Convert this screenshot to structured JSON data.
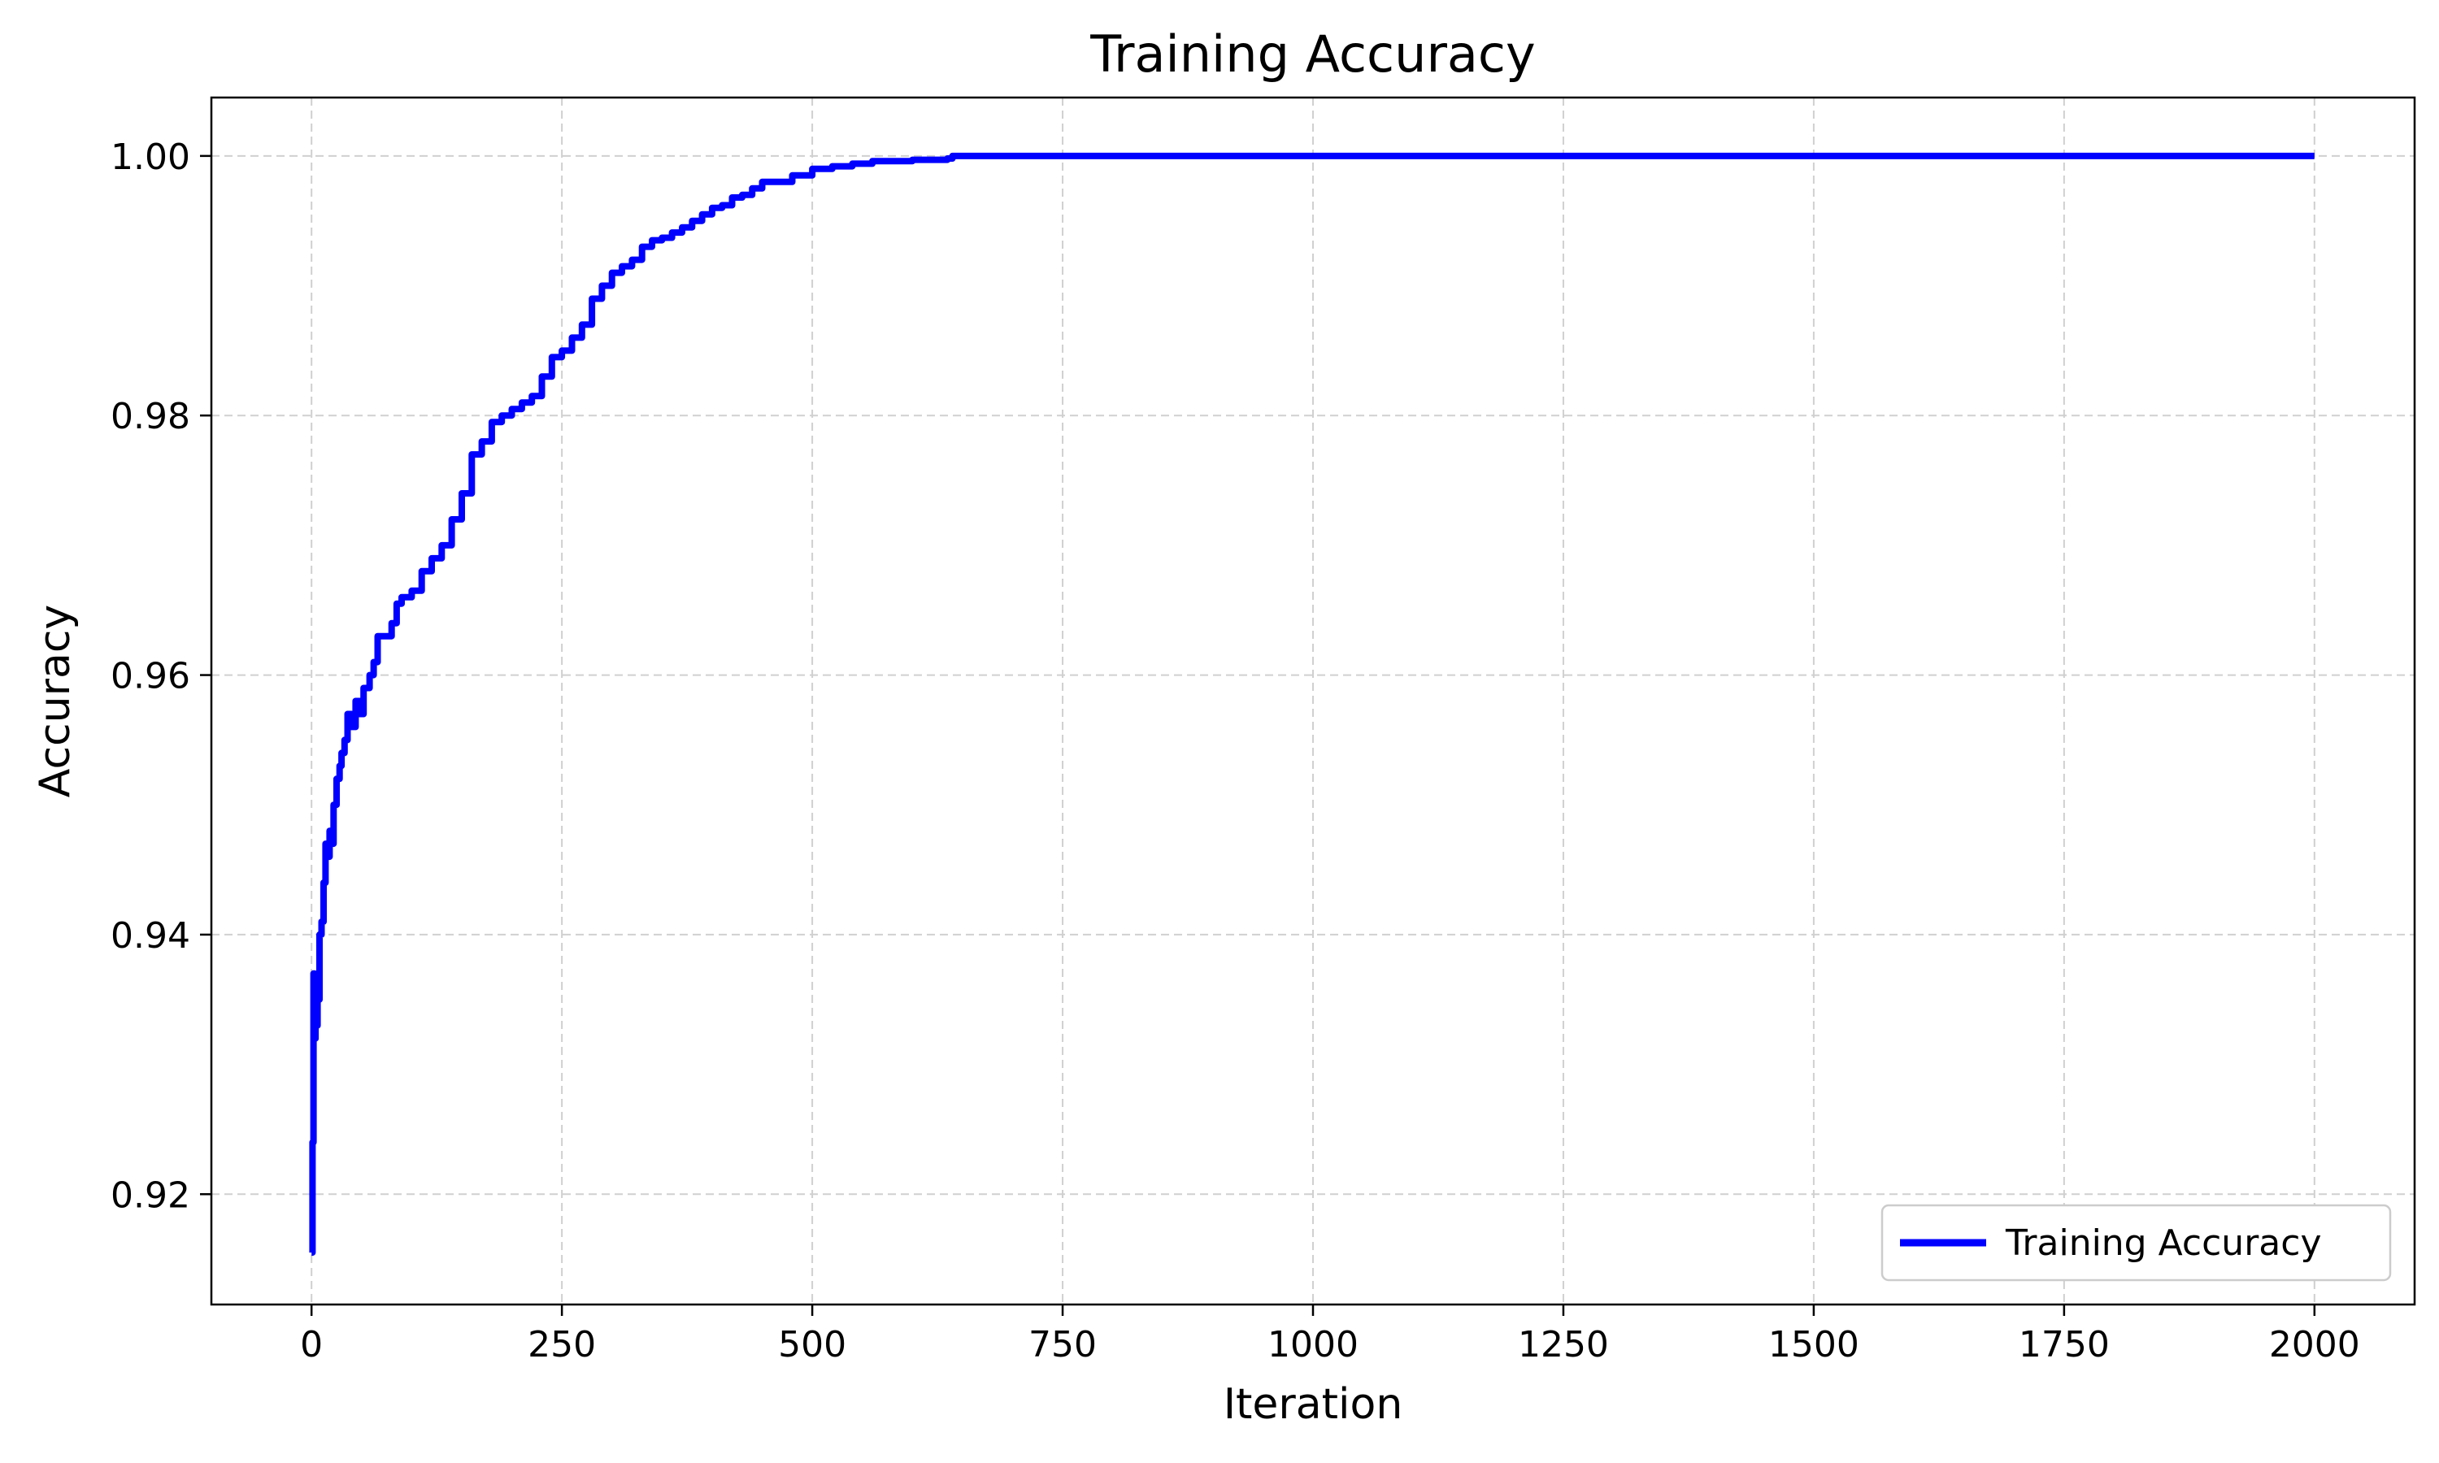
{
  "chart_data": {
    "type": "line",
    "title": "Training Accuracy",
    "xlabel": "Iteration",
    "ylabel": "Accuracy",
    "xlim": [
      -100,
      2100
    ],
    "ylim": [
      0.9115,
      1.0045
    ],
    "xticks": [
      0,
      250,
      500,
      750,
      1000,
      1250,
      1500,
      1750,
      2000
    ],
    "xtick_labels": [
      "0",
      "250",
      "500",
      "750",
      "1000",
      "1250",
      "1500",
      "1750",
      "2000"
    ],
    "yticks": [
      0.92,
      0.94,
      0.96,
      0.98,
      1.0
    ],
    "ytick_labels": [
      "0.92",
      "0.94",
      "0.96",
      "0.98",
      "1.00"
    ],
    "grid": true,
    "legend": {
      "position": "lower-right",
      "entries": [
        "Training Accuracy"
      ]
    },
    "series": [
      {
        "name": "Training Accuracy",
        "color": "#0000ff",
        "x": [
          0,
          1,
          2,
          3,
          4,
          5,
          6,
          7,
          8,
          10,
          12,
          14,
          16,
          18,
          20,
          22,
          25,
          28,
          30,
          33,
          36,
          40,
          44,
          48,
          52,
          55,
          58,
          62,
          66,
          70,
          75,
          80,
          85,
          90,
          95,
          100,
          110,
          120,
          130,
          140,
          150,
          160,
          170,
          180,
          190,
          200,
          210,
          220,
          230,
          240,
          250,
          260,
          270,
          280,
          290,
          300,
          310,
          320,
          330,
          340,
          350,
          360,
          370,
          380,
          390,
          400,
          410,
          420,
          430,
          440,
          450,
          460,
          480,
          500,
          520,
          540,
          560,
          580,
          600,
          620,
          635,
          640,
          700,
          800,
          1000,
          1250,
          1500,
          1750,
          2000
        ],
        "y": [
          0.9155,
          0.924,
          0.937,
          0.932,
          0.936,
          0.933,
          0.936,
          0.935,
          0.94,
          0.941,
          0.944,
          0.947,
          0.946,
          0.948,
          0.947,
          0.95,
          0.952,
          0.953,
          0.954,
          0.955,
          0.957,
          0.956,
          0.958,
          0.957,
          0.959,
          0.959,
          0.96,
          0.961,
          0.963,
          0.963,
          0.963,
          0.964,
          0.9655,
          0.966,
          0.966,
          0.9665,
          0.968,
          0.969,
          0.97,
          0.972,
          0.974,
          0.977,
          0.978,
          0.9795,
          0.98,
          0.9805,
          0.981,
          0.9815,
          0.983,
          0.9845,
          0.985,
          0.986,
          0.987,
          0.989,
          0.99,
          0.991,
          0.9915,
          0.992,
          0.993,
          0.9935,
          0.9937,
          0.9941,
          0.9945,
          0.995,
          0.9955,
          0.996,
          0.9962,
          0.9968,
          0.997,
          0.9975,
          0.998,
          0.998,
          0.9985,
          0.999,
          0.9992,
          0.9994,
          0.9996,
          0.9996,
          0.9997,
          0.9997,
          0.9998,
          1.0,
          1.0,
          1.0,
          1.0,
          1.0,
          1.0,
          1.0,
          1.0
        ]
      }
    ]
  }
}
